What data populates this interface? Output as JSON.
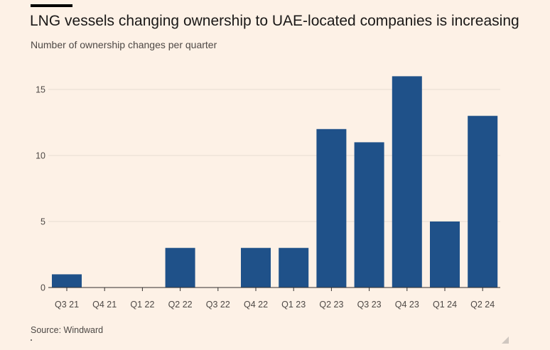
{
  "header": {
    "title": "LNG vessels changing ownership to UAE-located companies is increasing",
    "subtitle": "Number of ownership changes per quarter"
  },
  "footer": {
    "source": "Source: Windward"
  },
  "colors": {
    "background": "#fdf1e6",
    "bar": "#1f5189",
    "grid": "#e8ddd3",
    "axis": "#33302e"
  },
  "chart_data": {
    "type": "bar",
    "title": "LNG vessels changing ownership to UAE-located companies is increasing",
    "subtitle": "Number of ownership changes per quarter",
    "xlabel": "",
    "ylabel": "",
    "categories": [
      "Q3 21",
      "Q4 21",
      "Q1 22",
      "Q2 22",
      "Q3 22",
      "Q4 22",
      "Q1 23",
      "Q2 23",
      "Q3 23",
      "Q4 23",
      "Q1 24",
      "Q2 24"
    ],
    "values": [
      1,
      0,
      0,
      3,
      0,
      3,
      3,
      12,
      11,
      16,
      5,
      13
    ],
    "ylim": [
      0,
      16
    ],
    "yticks": [
      0,
      5,
      10,
      15
    ],
    "grid": true,
    "legend": "none"
  }
}
